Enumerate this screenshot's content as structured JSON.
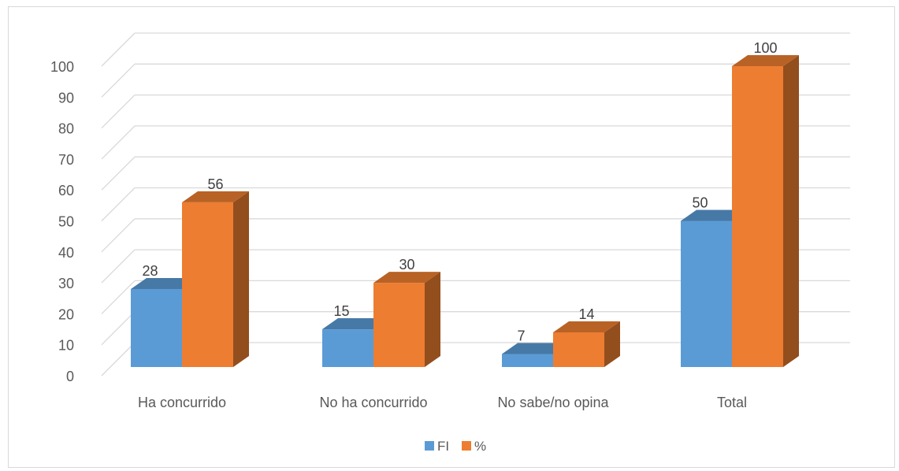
{
  "chart_data": {
    "type": "bar",
    "categories": [
      "Ha concurrido",
      "No ha concurrido",
      "No sabe/no opina",
      "Total"
    ],
    "series": [
      {
        "name": "FI",
        "values": [
          28,
          15,
          7,
          50
        ],
        "color": "#5b9bd5"
      },
      {
        "name": "%",
        "values": [
          56,
          30,
          14,
          100
        ],
        "color": "#ed7d31"
      }
    ],
    "y_ticks": [
      "0",
      "10",
      "20",
      "30",
      "40",
      "50",
      "60",
      "70",
      "80",
      "90",
      "100"
    ],
    "ylim": [
      0,
      100
    ],
    "grid": true,
    "style": "3d clustered column",
    "legend_position": "bottom",
    "title": "",
    "xlabel": "",
    "ylabel": ""
  }
}
